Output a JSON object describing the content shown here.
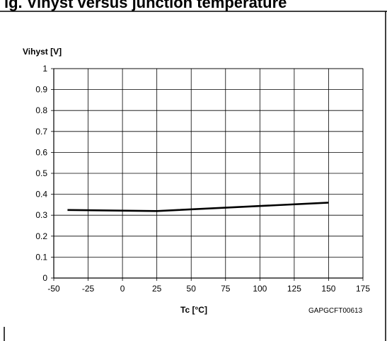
{
  "header": {
    "text": "ig. Vihyst versus junction temperature"
  },
  "chart_data": {
    "type": "line",
    "title": "",
    "xlabel": "Tc [°C]",
    "ylabel": "Vihyst [V]",
    "xlim": [
      -50,
      175
    ],
    "ylim": [
      0,
      1
    ],
    "xticks": [
      "-50",
      "-25",
      "0",
      "25",
      "50",
      "75",
      "100",
      "125",
      "150",
      "175"
    ],
    "yticks": [
      "0",
      "0.1",
      "0.2",
      "0.3",
      "0.4",
      "0.5",
      "0.6",
      "0.7",
      "0.8",
      "0.9",
      "1"
    ],
    "grid": true,
    "series": [
      {
        "points": [
          {
            "x": -40,
            "y": 0.325
          },
          {
            "x": 25,
            "y": 0.32
          },
          {
            "x": 150,
            "y": 0.36
          }
        ]
      }
    ],
    "figure_code": "GAPGCFT00613"
  }
}
